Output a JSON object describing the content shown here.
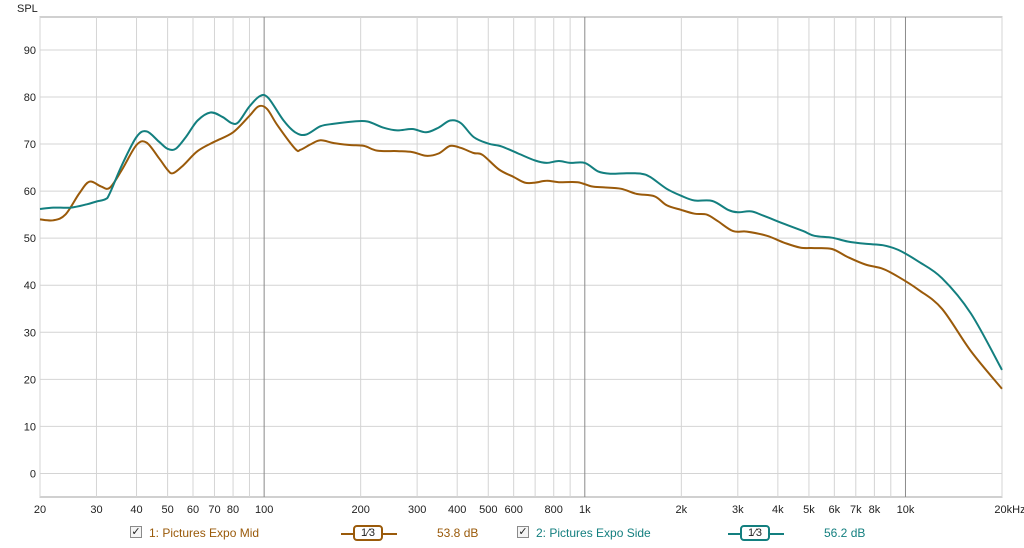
{
  "chart_data": {
    "type": "line",
    "ylabel": "SPL",
    "x_scale": "log",
    "xlim": [
      20,
      20000
    ],
    "ylim": [
      -5,
      97
    ],
    "y_ticks": [
      0,
      10,
      20,
      30,
      40,
      50,
      60,
      70,
      80,
      90
    ],
    "x_ticks": [
      20,
      30,
      40,
      50,
      60,
      70,
      80,
      100,
      200,
      300,
      400,
      500,
      600,
      800,
      1000,
      2000,
      3000,
      4000,
      5000,
      6000,
      7000,
      8000,
      10000,
      20000
    ],
    "x_tick_labels": [
      "20",
      "30",
      "40",
      "50",
      "60",
      "70",
      "80",
      "100",
      "200",
      "300",
      "400",
      "500",
      "600",
      "800",
      "1k",
      "2k",
      "3k",
      "4k",
      "5k",
      "6k",
      "7k",
      "8k",
      "10k",
      "20kHz"
    ],
    "grid": true,
    "series": [
      {
        "name": "1: Pictures Expo Mid",
        "color": "#9a5a0a",
        "points": [
          [
            20,
            54
          ],
          [
            22,
            53.8
          ],
          [
            24,
            55
          ],
          [
            26.5,
            59.5
          ],
          [
            28.5,
            62
          ],
          [
            31,
            61
          ],
          [
            33,
            60.7
          ],
          [
            36,
            64.5
          ],
          [
            40,
            69.8
          ],
          [
            43,
            70.3
          ],
          [
            47,
            67
          ],
          [
            50,
            64.5
          ],
          [
            52,
            63.8
          ],
          [
            56,
            65.5
          ],
          [
            62,
            68.5
          ],
          [
            70,
            70.5
          ],
          [
            80,
            72.5
          ],
          [
            90,
            76
          ],
          [
            96,
            78
          ],
          [
            102,
            77.5
          ],
          [
            110,
            74
          ],
          [
            125,
            69
          ],
          [
            130,
            68.8
          ],
          [
            140,
            70
          ],
          [
            150,
            70.8
          ],
          [
            165,
            70.2
          ],
          [
            185,
            69.8
          ],
          [
            205,
            69.6
          ],
          [
            225,
            68.6
          ],
          [
            260,
            68.5
          ],
          [
            290,
            68.3
          ],
          [
            320,
            67.5
          ],
          [
            350,
            68
          ],
          [
            380,
            69.6
          ],
          [
            410,
            69.2
          ],
          [
            450,
            68.1
          ],
          [
            480,
            67.7
          ],
          [
            540,
            64.6
          ],
          [
            600,
            63
          ],
          [
            650,
            61.8
          ],
          [
            700,
            61.8
          ],
          [
            760,
            62.2
          ],
          [
            830,
            61.9
          ],
          [
            950,
            61.9
          ],
          [
            1050,
            61
          ],
          [
            1150,
            60.8
          ],
          [
            1300,
            60.5
          ],
          [
            1450,
            59.4
          ],
          [
            1650,
            58.9
          ],
          [
            1800,
            57
          ],
          [
            2000,
            56
          ],
          [
            2200,
            55.2
          ],
          [
            2400,
            55
          ],
          [
            2600,
            53.6
          ],
          [
            2900,
            51.5
          ],
          [
            3200,
            51.4
          ],
          [
            3700,
            50.5
          ],
          [
            4200,
            49
          ],
          [
            4700,
            48
          ],
          [
            5200,
            47.9
          ],
          [
            5900,
            47.7
          ],
          [
            6600,
            46
          ],
          [
            7500,
            44.4
          ],
          [
            8500,
            43.5
          ],
          [
            9500,
            41.8
          ],
          [
            11000,
            39
          ],
          [
            13000,
            35
          ],
          [
            16000,
            26
          ],
          [
            20000,
            18
          ]
        ]
      },
      {
        "name": "2: Pictures Expo Side",
        "color": "#137f7f",
        "points": [
          [
            20,
            56.2
          ],
          [
            22,
            56.5
          ],
          [
            25,
            56.5
          ],
          [
            28,
            57.2
          ],
          [
            30,
            57.8
          ],
          [
            32,
            58.3
          ],
          [
            33,
            59.5
          ],
          [
            36,
            65.5
          ],
          [
            40,
            71.5
          ],
          [
            43,
            72.7
          ],
          [
            47,
            70.5
          ],
          [
            50,
            69
          ],
          [
            53,
            69
          ],
          [
            57,
            71.5
          ],
          [
            62,
            75
          ],
          [
            68,
            76.7
          ],
          [
            74,
            75.8
          ],
          [
            79,
            74.5
          ],
          [
            83,
            74.6
          ],
          [
            90,
            78
          ],
          [
            97,
            80.2
          ],
          [
            103,
            79.8
          ],
          [
            115,
            75
          ],
          [
            125,
            72.5
          ],
          [
            135,
            72
          ],
          [
            150,
            73.8
          ],
          [
            165,
            74.3
          ],
          [
            190,
            74.8
          ],
          [
            210,
            74.8
          ],
          [
            235,
            73.5
          ],
          [
            260,
            72.9
          ],
          [
            290,
            73.2
          ],
          [
            320,
            72.5
          ],
          [
            350,
            73.5
          ],
          [
            380,
            75
          ],
          [
            410,
            74.5
          ],
          [
            450,
            71.5
          ],
          [
            500,
            70.1
          ],
          [
            550,
            69.5
          ],
          [
            620,
            68
          ],
          [
            700,
            66.5
          ],
          [
            760,
            66
          ],
          [
            830,
            66.4
          ],
          [
            900,
            66
          ],
          [
            1000,
            66
          ],
          [
            1100,
            64.2
          ],
          [
            1200,
            63.7
          ],
          [
            1350,
            63.8
          ],
          [
            1500,
            63.7
          ],
          [
            1600,
            63
          ],
          [
            1800,
            60.5
          ],
          [
            2000,
            59
          ],
          [
            2200,
            58
          ],
          [
            2500,
            57.9
          ],
          [
            2800,
            56
          ],
          [
            3000,
            55.5
          ],
          [
            3300,
            55.7
          ],
          [
            3600,
            54.8
          ],
          [
            4200,
            53
          ],
          [
            4800,
            51.5
          ],
          [
            5200,
            50.5
          ],
          [
            5900,
            50.1
          ],
          [
            6600,
            49.3
          ],
          [
            7500,
            48.8
          ],
          [
            8500,
            48.5
          ],
          [
            9500,
            47.5
          ],
          [
            11000,
            45
          ],
          [
            13000,
            41.5
          ],
          [
            16000,
            34
          ],
          [
            20000,
            22
          ]
        ]
      }
    ],
    "legend": [
      {
        "label": "1: Pictures Expo Mid",
        "smoothing": "1⁄3",
        "value": "53.8 dB",
        "color": "#9a5a0a"
      },
      {
        "label": "2: Pictures Expo Side",
        "smoothing": "1⁄3",
        "value": "56.2 dB",
        "color": "#137f7f"
      }
    ]
  }
}
